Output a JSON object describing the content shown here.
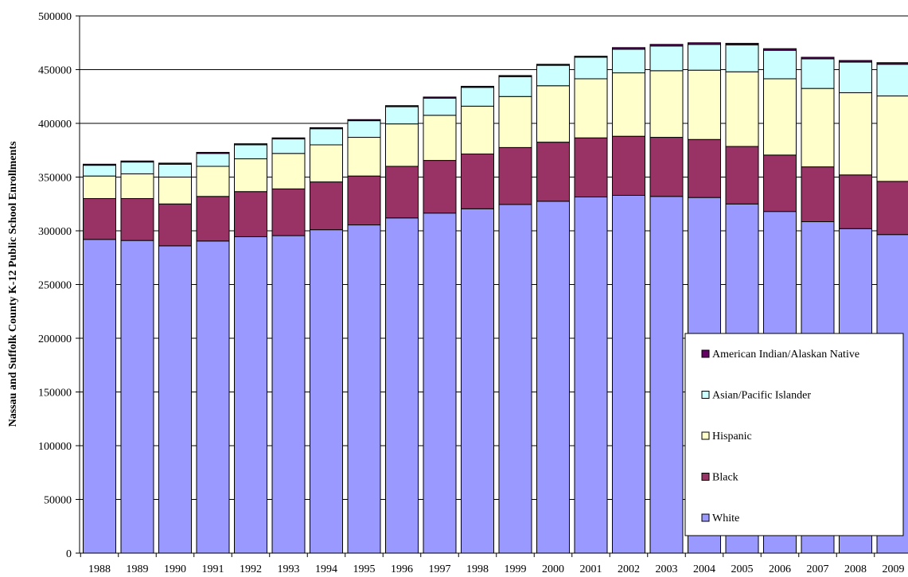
{
  "chart_data": {
    "type": "bar",
    "stacked": true,
    "title": "",
    "xlabel": "",
    "ylabel": "Nassau and Suffolk County K-12 Public School Enrollments",
    "ylim": [
      0,
      500000
    ],
    "yticks": [
      0,
      50000,
      100000,
      150000,
      200000,
      250000,
      300000,
      350000,
      400000,
      450000,
      500000
    ],
    "grid": true,
    "legend_position": "bottom-right",
    "categories": [
      "1988",
      "1989",
      "1990",
      "1991",
      "1992",
      "1993",
      "1994",
      "1995",
      "1996",
      "1997",
      "1998",
      "1999",
      "2000",
      "2001",
      "2002",
      "2003",
      "2004",
      "2005",
      "2006",
      "2007",
      "2008",
      "2009"
    ],
    "series": [
      {
        "name": "White",
        "color": "#9999ff",
        "values": [
          292000,
          291000,
          286000,
          290500,
          294500,
          295500,
          301000,
          305500,
          312000,
          316500,
          320500,
          324500,
          327500,
          331500,
          333000,
          332000,
          331000,
          325000,
          318000,
          308500,
          302000,
          296500
        ]
      },
      {
        "name": "Black",
        "color": "#993366",
        "values": [
          38000,
          39000,
          39000,
          41500,
          42000,
          43500,
          44500,
          45500,
          48000,
          49000,
          51000,
          53000,
          55000,
          55000,
          55000,
          55000,
          54000,
          53500,
          52500,
          51000,
          50000,
          49500
        ]
      },
      {
        "name": "Hispanic",
        "color": "#ffffcc",
        "values": [
          21000,
          23000,
          25000,
          28000,
          30500,
          33000,
          34500,
          36000,
          39500,
          42000,
          44500,
          47500,
          52500,
          55000,
          59000,
          62000,
          64500,
          69500,
          71000,
          73000,
          76500,
          79500
        ]
      },
      {
        "name": "Asian/Pacific Islander",
        "color": "#ccffff",
        "values": [
          10000,
          11000,
          12000,
          12000,
          13000,
          13500,
          15000,
          15500,
          16000,
          16000,
          17500,
          18500,
          19000,
          20000,
          22000,
          23000,
          24000,
          25000,
          26500,
          27500,
          28500,
          29500
        ]
      },
      {
        "name": "American Indian/Alaskan Native",
        "color": "#660066",
        "values": [
          1000,
          1000,
          1000,
          1000,
          1000,
          1000,
          1000,
          1000,
          1000,
          1000,
          1000,
          1000,
          1000,
          1000,
          1500,
          1500,
          1500,
          1500,
          1500,
          1500,
          1500,
          1500
        ]
      }
    ],
    "legend_order": [
      "American Indian/Alaskan Native",
      "Asian/Pacific Islander",
      "Hispanic",
      "Black",
      "White"
    ]
  }
}
